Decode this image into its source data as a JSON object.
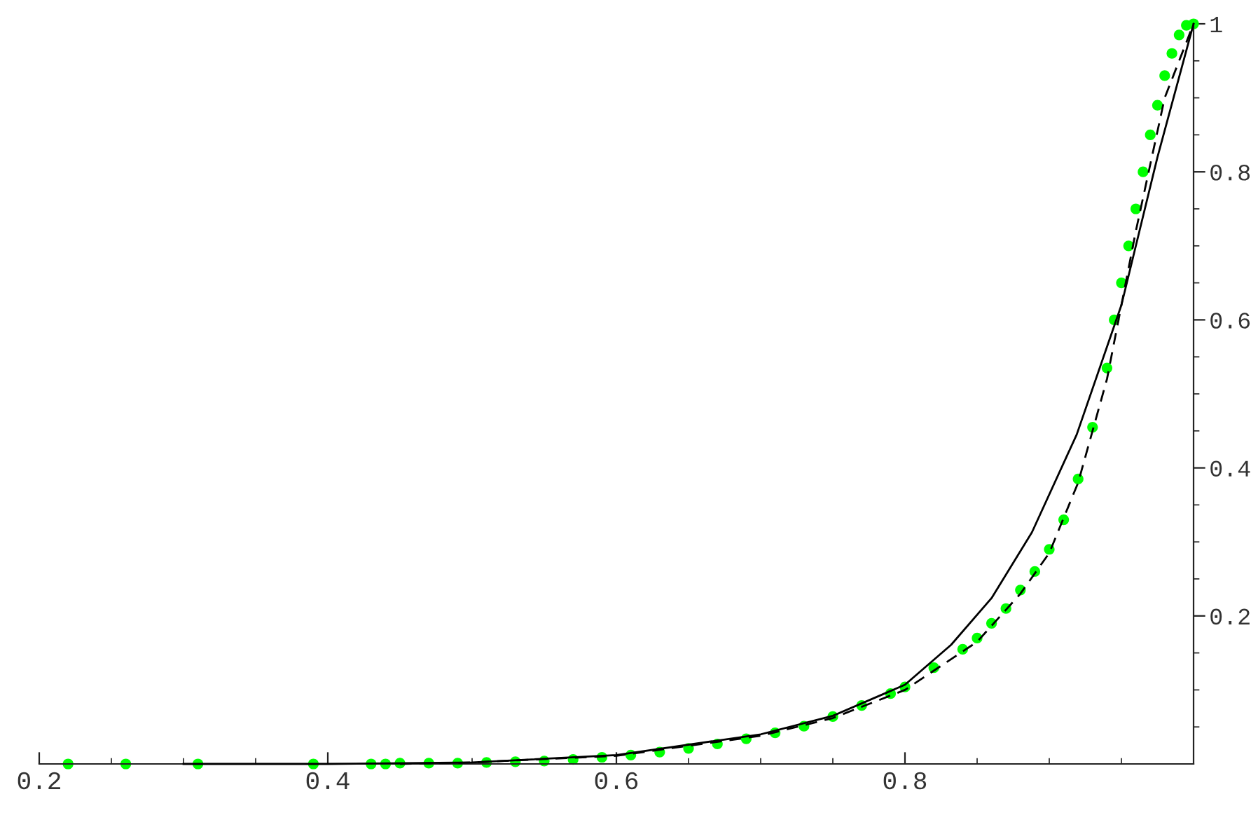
{
  "chart_data": {
    "type": "scatter",
    "grid": false,
    "xlim": [
      0.2,
      1.0
    ],
    "ylim": [
      0,
      1.0
    ],
    "xticks": [
      0.2,
      {
        "value": 0.25,
        "label": null
      },
      {
        "value": 0.3,
        "label": null
      },
      {
        "value": 0.35,
        "label": null
      },
      0.4,
      {
        "value": 0.45,
        "label": null
      },
      {
        "value": 0.5,
        "label": null
      },
      {
        "value": 0.55,
        "label": null
      },
      0.6,
      {
        "value": 0.65,
        "label": null
      },
      {
        "value": 0.7,
        "label": null
      },
      {
        "value": 0.75,
        "label": null
      },
      0.8,
      {
        "value": 0.85,
        "label": null
      },
      {
        "value": 0.9,
        "label": null
      },
      {
        "value": 0.95,
        "label": null
      }
    ],
    "yticks": [
      {
        "value": 0.05,
        "label": null
      },
      {
        "value": 0.1,
        "label": null
      },
      {
        "value": 0.15,
        "label": null
      },
      0.2,
      {
        "value": 0.25,
        "label": null
      },
      {
        "value": 0.3,
        "label": null
      },
      {
        "value": 0.35,
        "label": null
      },
      0.4,
      {
        "value": 0.45,
        "label": null
      },
      {
        "value": 0.5,
        "label": null
      },
      {
        "value": 0.55,
        "label": null
      },
      0.6,
      {
        "value": 0.65,
        "label": null
      },
      {
        "value": 0.7,
        "label": null
      },
      {
        "value": 0.75,
        "label": null
      },
      0.8,
      {
        "value": 0.85,
        "label": null
      },
      {
        "value": 0.9,
        "label": null
      },
      {
        "value": 0.95,
        "label": null
      },
      1
    ],
    "series": [
      {
        "type": "line",
        "color": "#000000",
        "line_style": "solid",
        "x": [
          0.3,
          0.4,
          0.5,
          0.6,
          0.7,
          0.75,
          0.8,
          0.832,
          0.86,
          0.888,
          0.919,
          0.95,
          0.975,
          1.0
        ],
        "values": [
          0,
          0,
          0.002,
          0.012,
          0.04,
          0.065,
          0.107,
          0.161,
          0.224,
          0.313,
          0.445,
          0.62,
          0.82,
          1.0
        ]
      },
      {
        "type": "line",
        "color": "#000000",
        "line_style": "dashed",
        "x": [
          0.45,
          0.5,
          0.6,
          0.7,
          0.75,
          0.8,
          0.85,
          0.88,
          0.9,
          0.92,
          0.94,
          0.96,
          0.98,
          1.0
        ],
        "values": [
          0,
          0.002,
          0.011,
          0.038,
          0.062,
          0.1,
          0.165,
          0.23,
          0.285,
          0.38,
          0.52,
          0.72,
          0.9,
          1.0
        ]
      },
      {
        "marker": "circle",
        "color": "#00ff00",
        "x": [
          0.22,
          0.26,
          0.31,
          0.39,
          0.43,
          0.44,
          0.45,
          0.47,
          0.49,
          0.51,
          0.53,
          0.55,
          0.57,
          0.59,
          0.61,
          0.63,
          0.65,
          0.67,
          0.69,
          0.71,
          0.73,
          0.75,
          0.77,
          0.79,
          0.8,
          0.82,
          0.84,
          0.85,
          0.86,
          0.87,
          0.88,
          0.89,
          0.9,
          0.91,
          0.92,
          0.93,
          0.94,
          0.945,
          0.95,
          0.955,
          0.96,
          0.965,
          0.97,
          0.975,
          0.98,
          0.985,
          0.99,
          0.995,
          1.0
        ],
        "values": [
          0,
          0,
          0,
          0,
          0,
          0,
          0.001,
          0.001,
          0.001,
          0.002,
          0.003,
          0.004,
          0.006,
          0.009,
          0.012,
          0.016,
          0.021,
          0.027,
          0.034,
          0.042,
          0.051,
          0.064,
          0.079,
          0.095,
          0.104,
          0.13,
          0.155,
          0.17,
          0.19,
          0.21,
          0.235,
          0.26,
          0.29,
          0.33,
          0.385,
          0.455,
          0.535,
          0.6,
          0.65,
          0.7,
          0.75,
          0.8,
          0.85,
          0.89,
          0.93,
          0.96,
          0.985,
          0.998,
          1.0
        ]
      }
    ]
  }
}
